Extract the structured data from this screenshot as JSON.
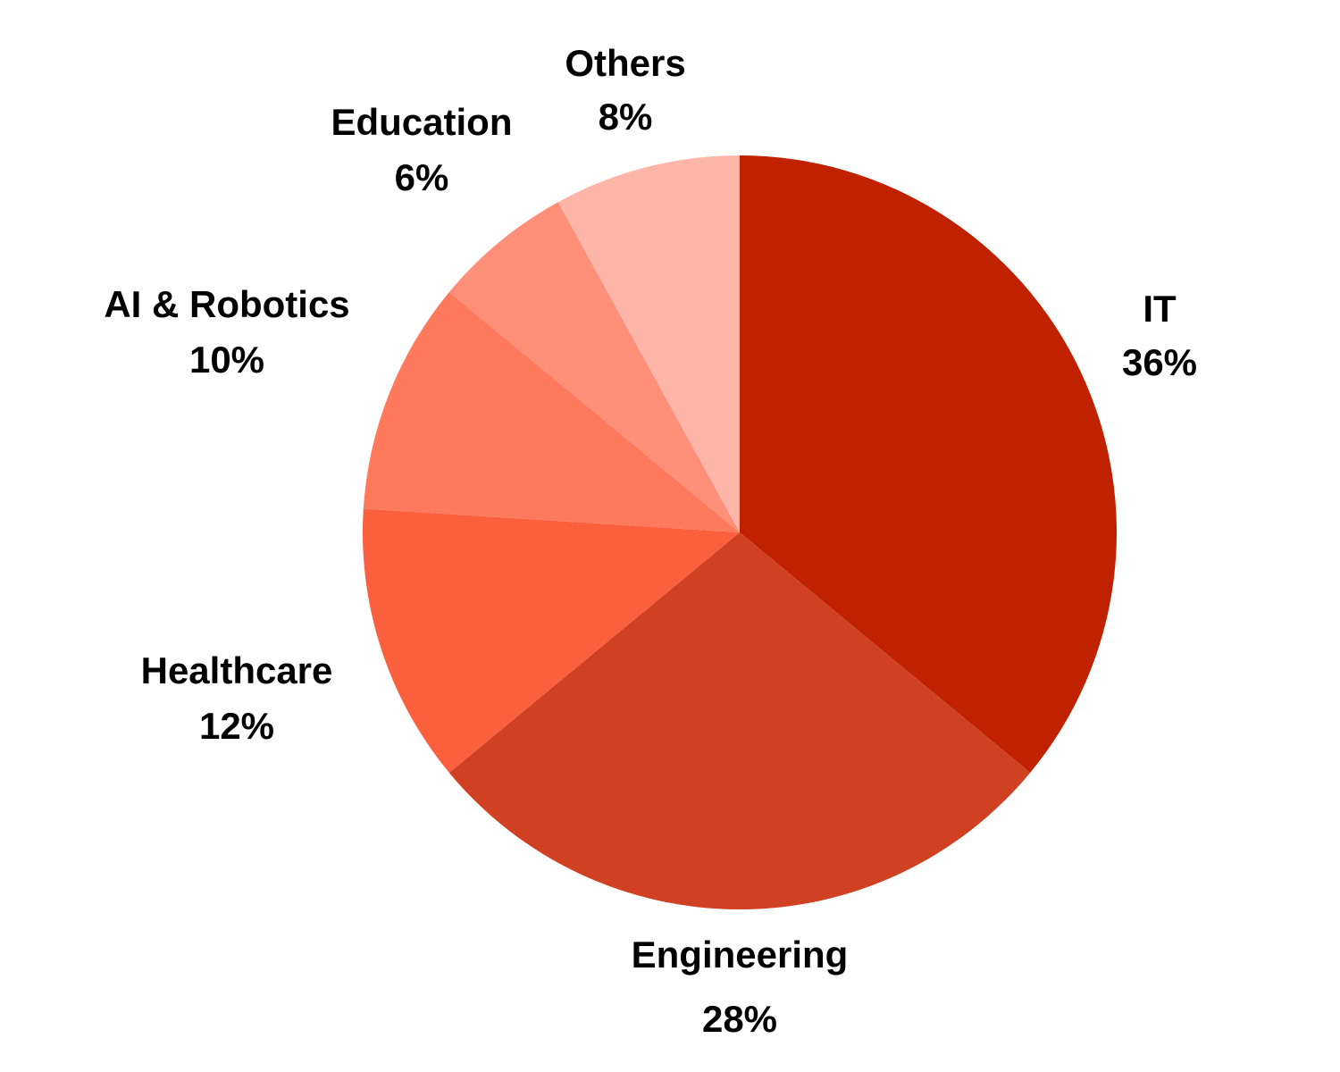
{
  "chart_data": {
    "type": "pie",
    "title": "",
    "start": "top",
    "direction": "clockwise",
    "slices": [
      {
        "label": "IT",
        "value": 36,
        "value_label": "36%",
        "color": "#c02200"
      },
      {
        "label": "Engineering",
        "value": 28,
        "value_label": "28%",
        "color": "#cf4122"
      },
      {
        "label": "Healthcare",
        "value": 12,
        "value_label": "12%",
        "color": "#fa5f3e"
      },
      {
        "label": "AI & Robotics",
        "value": 10,
        "value_label": "10%",
        "color": "#ff7a5c"
      },
      {
        "label": "Education",
        "value": 6,
        "value_label": "6%",
        "color": "#ff8f78"
      },
      {
        "label": "Others",
        "value": 8,
        "value_label": "8%",
        "color": "#ffb6a8"
      }
    ]
  }
}
